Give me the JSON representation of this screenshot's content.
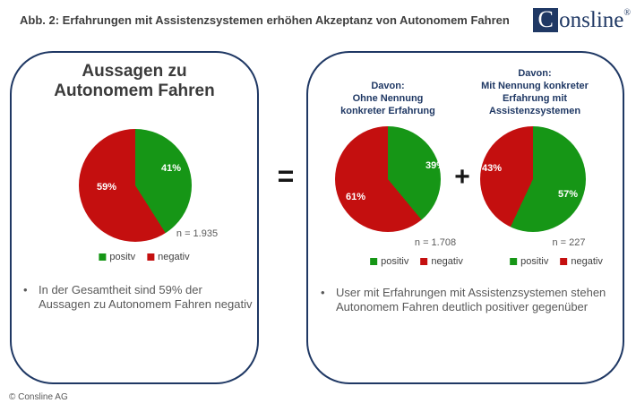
{
  "header": {
    "title": "Abb. 2: Erfahrungen mit Assistenzsystemen erhöhen Akzeptanz von Autonomem Fahren",
    "logo": {
      "mark": "C",
      "rest": "onsline",
      "registered": "®"
    }
  },
  "connectors": {
    "equals": "=",
    "plus": "+",
    "bullet": "•"
  },
  "left_panel": {
    "title_lines": [
      "Aussagen zu",
      "Autonomem Fahren"
    ],
    "bullet": "In der Gesamtheit sind 59% der Aussagen zu Autonomem Fahren negativ"
  },
  "right_panel": {
    "chart1_header_lines": [
      "Davon:",
      "Ohne Nennung",
      "konkreter Erfahrung"
    ],
    "chart2_header_lines": [
      "Davon:",
      "Mit Nennung konkreter",
      "Erfahrung mit",
      "Assistenzsystemen"
    ],
    "bullet": "User mit Erfahrungen mit Assistenzsystemen stehen Autonomem Fahren deutlich positiver gegenüber"
  },
  "footer": {
    "copyright": "© Consline AG"
  },
  "colors": {
    "positive": "#169616",
    "negative": "#C40F0F",
    "navy": "#1F3864"
  },
  "chart_data": [
    {
      "type": "pie",
      "title": "Aussagen zu Autonomem Fahren",
      "labels": [
        "positv",
        "negativ"
      ],
      "values": [
        41,
        59
      ],
      "value_labels": [
        "41%",
        "59%"
      ],
      "n_label": "n = 1.935",
      "colors": [
        "#169616",
        "#C40F0F"
      ],
      "start_angle_deg": 0,
      "direction": "clockwise",
      "legend_position": "bottom"
    },
    {
      "type": "pie",
      "title": "Davon: Ohne Nennung konkreter Erfahrung",
      "labels": [
        "positiv",
        "negativ"
      ],
      "values": [
        39,
        61
      ],
      "value_labels": [
        "39%",
        "61%"
      ],
      "n_label": "n = 1.708",
      "colors": [
        "#169616",
        "#C40F0F"
      ],
      "start_angle_deg": 0,
      "direction": "clockwise",
      "legend_position": "bottom"
    },
    {
      "type": "pie",
      "title": "Davon: Mit Nennung konkreter Erfahrung mit Assistenzsystemen",
      "labels": [
        "positiv",
        "negativ"
      ],
      "values": [
        57,
        43
      ],
      "value_labels": [
        "57%",
        "43%"
      ],
      "n_label": "n = 227",
      "colors": [
        "#169616",
        "#C40F0F"
      ],
      "start_angle_deg": 0,
      "direction": "clockwise",
      "legend_position": "bottom"
    }
  ]
}
